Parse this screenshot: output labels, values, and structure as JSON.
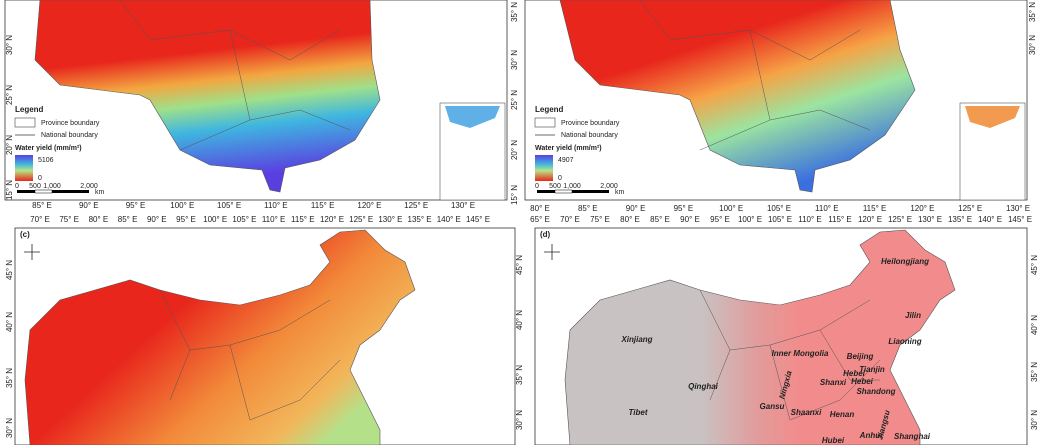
{
  "panels": [
    {
      "legend": {
        "title": "Legend",
        "items": [
          "Province boundary",
          "National boundary"
        ],
        "variable": "Water yield (mm/m²)",
        "max": "5106",
        "min": "0",
        "scale": [
          "0",
          "500",
          "1,000",
          "2,000"
        ],
        "scale_unit": "km"
      },
      "lon_labels": [
        "85° E",
        "90° E",
        "95° E",
        "100° E",
        "105° E",
        "110° E",
        "115° E",
        "120° E",
        "125° E",
        "130° E"
      ],
      "lat_left": [
        "30° N",
        "25° N",
        "20° N",
        "15° N"
      ],
      "lat_right": [
        "35° N",
        "30° N",
        "25° N",
        "20° N",
        "15° N"
      ]
    },
    {
      "legend": {
        "title": "Legend",
        "items": [
          "Province boundary",
          "National boundary"
        ],
        "variable": "Water yield (mm/m²)",
        "max": "4907",
        "min": "0",
        "scale": [
          "0",
          "500",
          "1,000",
          "2,000"
        ],
        "scale_unit": "km"
      },
      "lon_labels": [
        "80° E",
        "85° E",
        "90° E",
        "95° E",
        "100° E",
        "105° E",
        "110° E",
        "115° E",
        "120° E",
        "125° E",
        "130° E"
      ],
      "lat_right": [
        "35° N",
        "30° N"
      ]
    },
    {
      "label": "(c)",
      "lon_labels": [
        "70° E",
        "75° E",
        "80° E",
        "85° E",
        "90° E",
        "95° E",
        "100° E",
        "105° E",
        "110° E",
        "115° E",
        "120° E",
        "125° E",
        "130° E",
        "135° E",
        "140° E",
        "145° E"
      ],
      "lat_left": [
        "45° N",
        "40° N",
        "35° N",
        "30° N"
      ],
      "lat_right": [
        "45° N",
        "40° N",
        "35° N",
        "30° N"
      ]
    },
    {
      "label": "(d)",
      "lon_labels": [
        "65° E",
        "70° E",
        "75° E",
        "80° E",
        "85° E",
        "90° E",
        "95° E",
        "100° E",
        "105° E",
        "110° E",
        "115° E",
        "120° E",
        "125° E",
        "130° E",
        "135° E",
        "140° E",
        "145° E"
      ],
      "lat_right": [
        "45° N",
        "40° N",
        "35° N",
        "30° N"
      ],
      "provinces": [
        "Heilongjiang",
        "Jilin",
        "Liaoning",
        "Inner Mongolia",
        "Beijing",
        "Tianjin",
        "Hebei",
        "Hebei",
        "Shandong",
        "Shanxi",
        "Xinjiang",
        "Qinghai",
        "Ningxia",
        "Gansu",
        "Tibet",
        "Shaanxi",
        "Henan",
        "Anhui",
        "Jiangsu",
        "Shanghai",
        "Hubei"
      ]
    }
  ]
}
